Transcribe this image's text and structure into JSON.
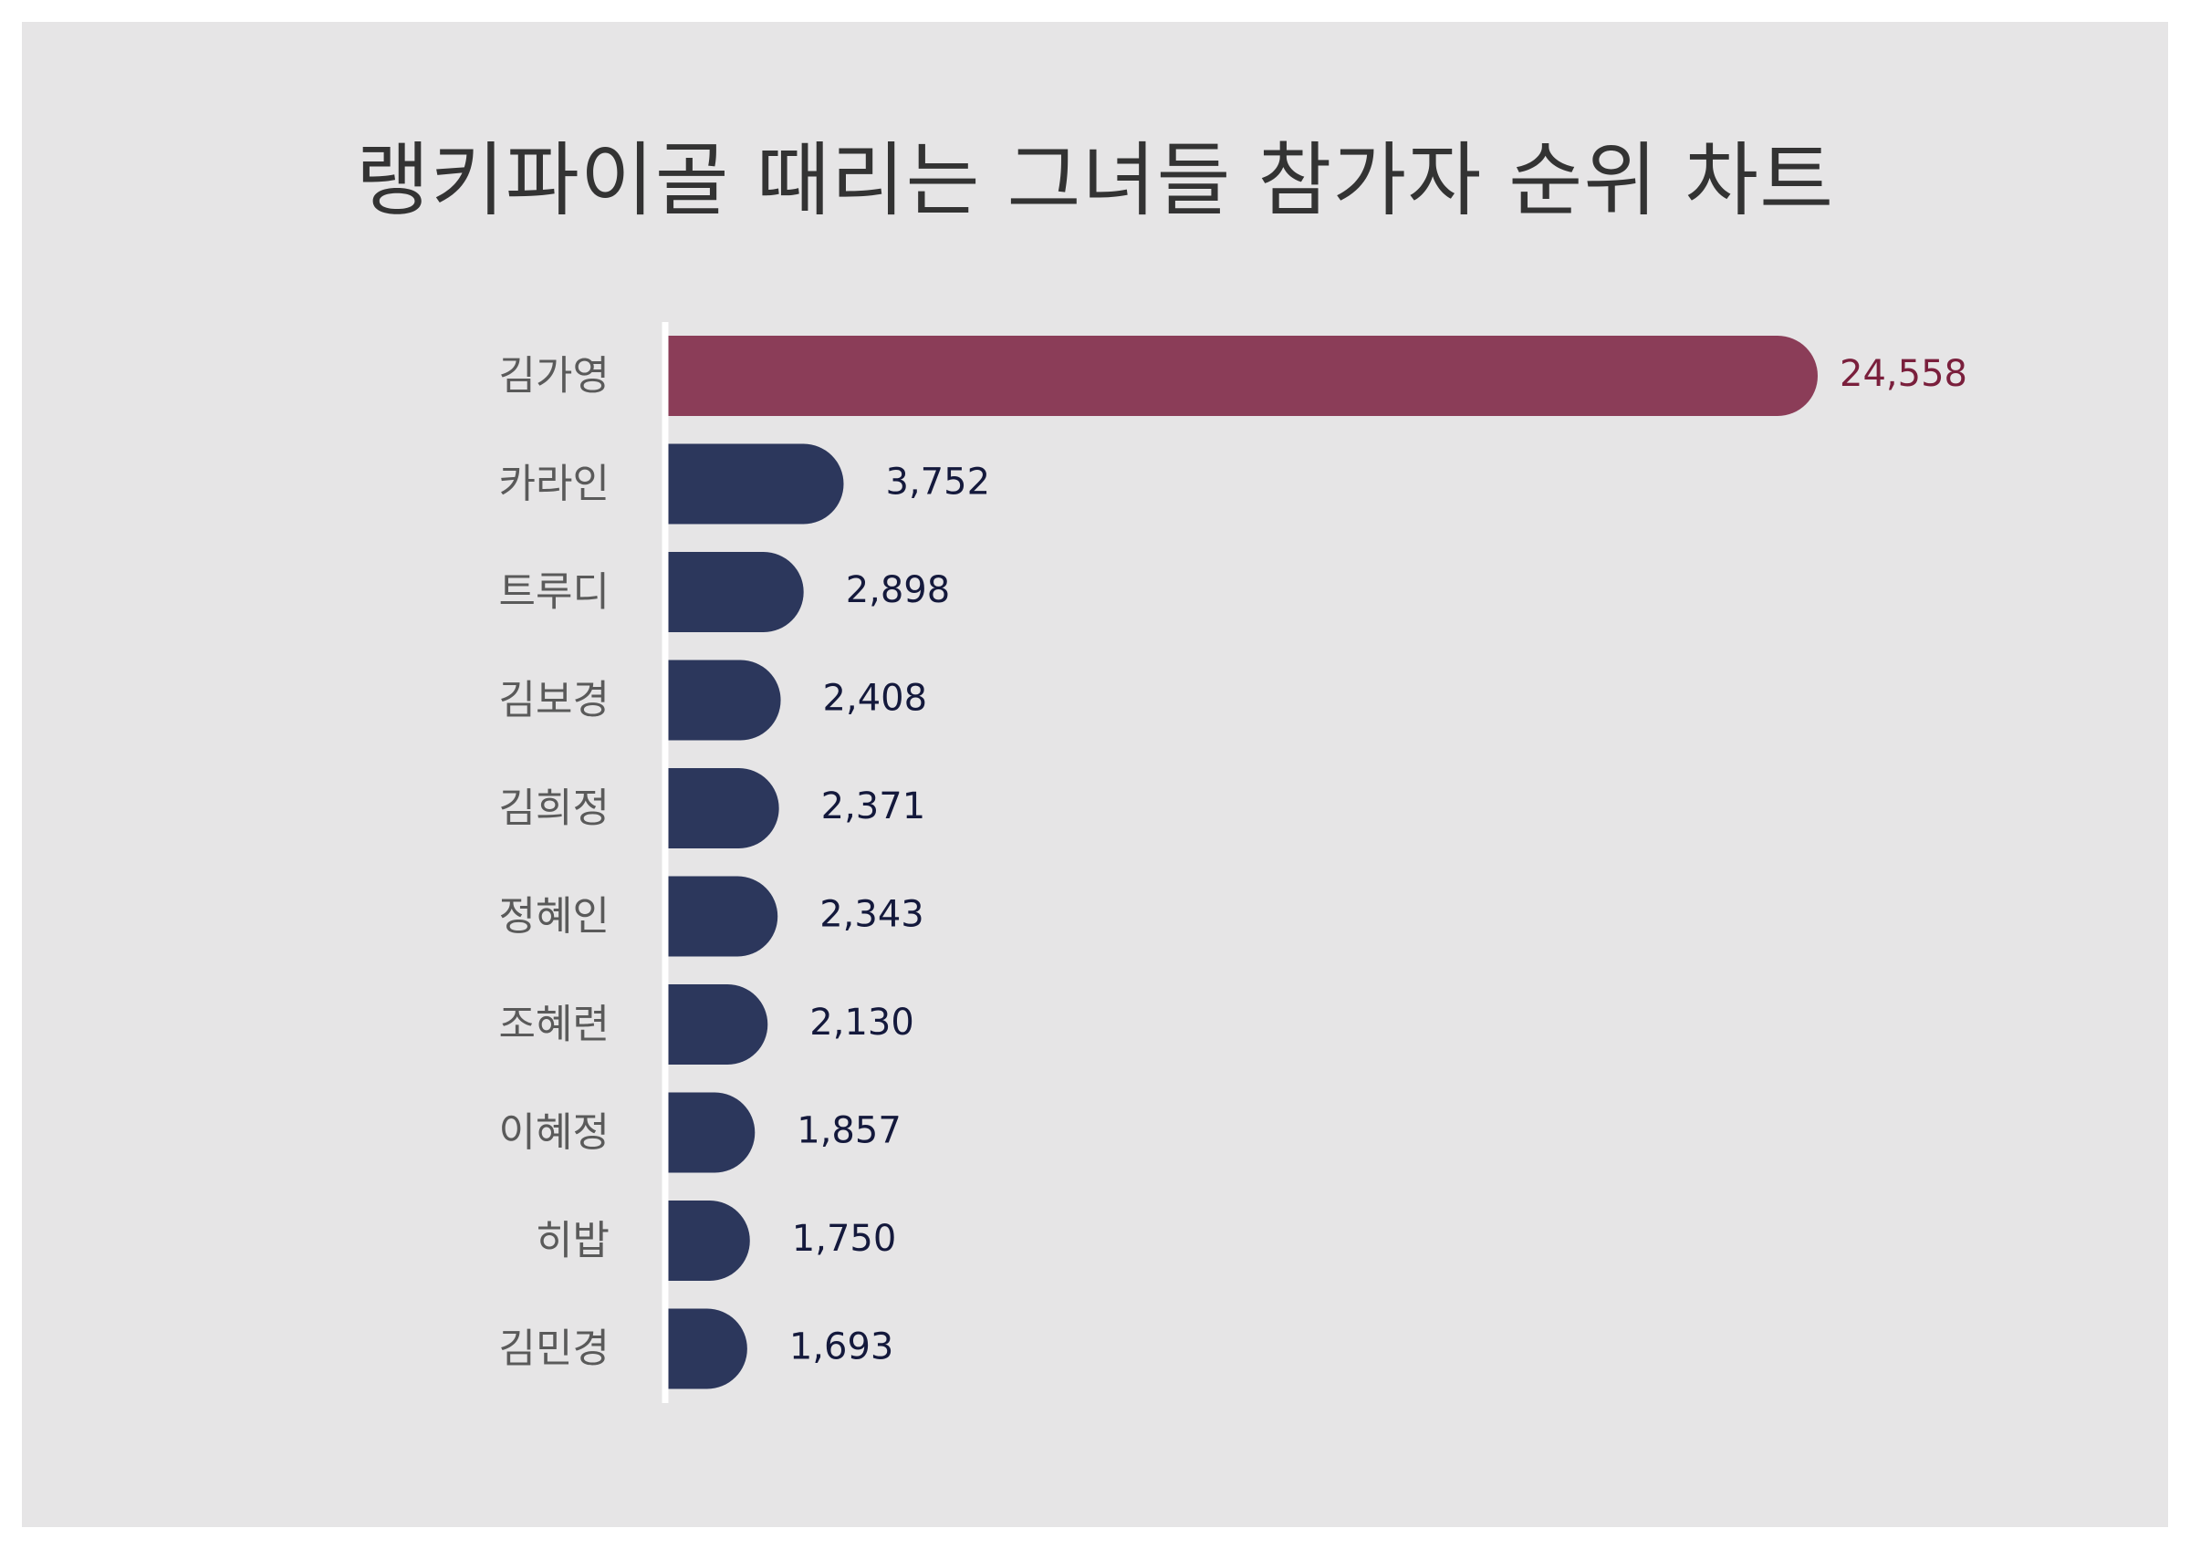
{
  "chart_data": {
    "type": "bar",
    "orientation": "horizontal",
    "title": "랭키파이골 때리는 그녀들 참가자 순위 차트",
    "categories": [
      "김가영",
      "카라인",
      "트루디",
      "김보경",
      "김희정",
      "정혜인",
      "조혜련",
      "이혜정",
      "히밥",
      "김민경"
    ],
    "values": [
      24558,
      3752,
      2898,
      2408,
      2371,
      2343,
      2130,
      1857,
      1750,
      1693
    ],
    "value_labels": [
      "24,558",
      "3,752",
      "2,898",
      "2,408",
      "2,371",
      "2,343",
      "2,130",
      "1,857",
      "1,750",
      "1,693"
    ],
    "highlight_index": 0,
    "xlabel": "",
    "ylabel": "",
    "grid": false,
    "legend": "none"
  },
  "colors": {
    "background": "#e6e5e6",
    "highlight_bar": "#8b3d58",
    "highlight_label": "#7a1f3c",
    "bar": "#2c375c",
    "value_label": "#14193c",
    "category_label": "#5a5a5a",
    "axis_line": "#ffffff",
    "title": "#333333"
  }
}
